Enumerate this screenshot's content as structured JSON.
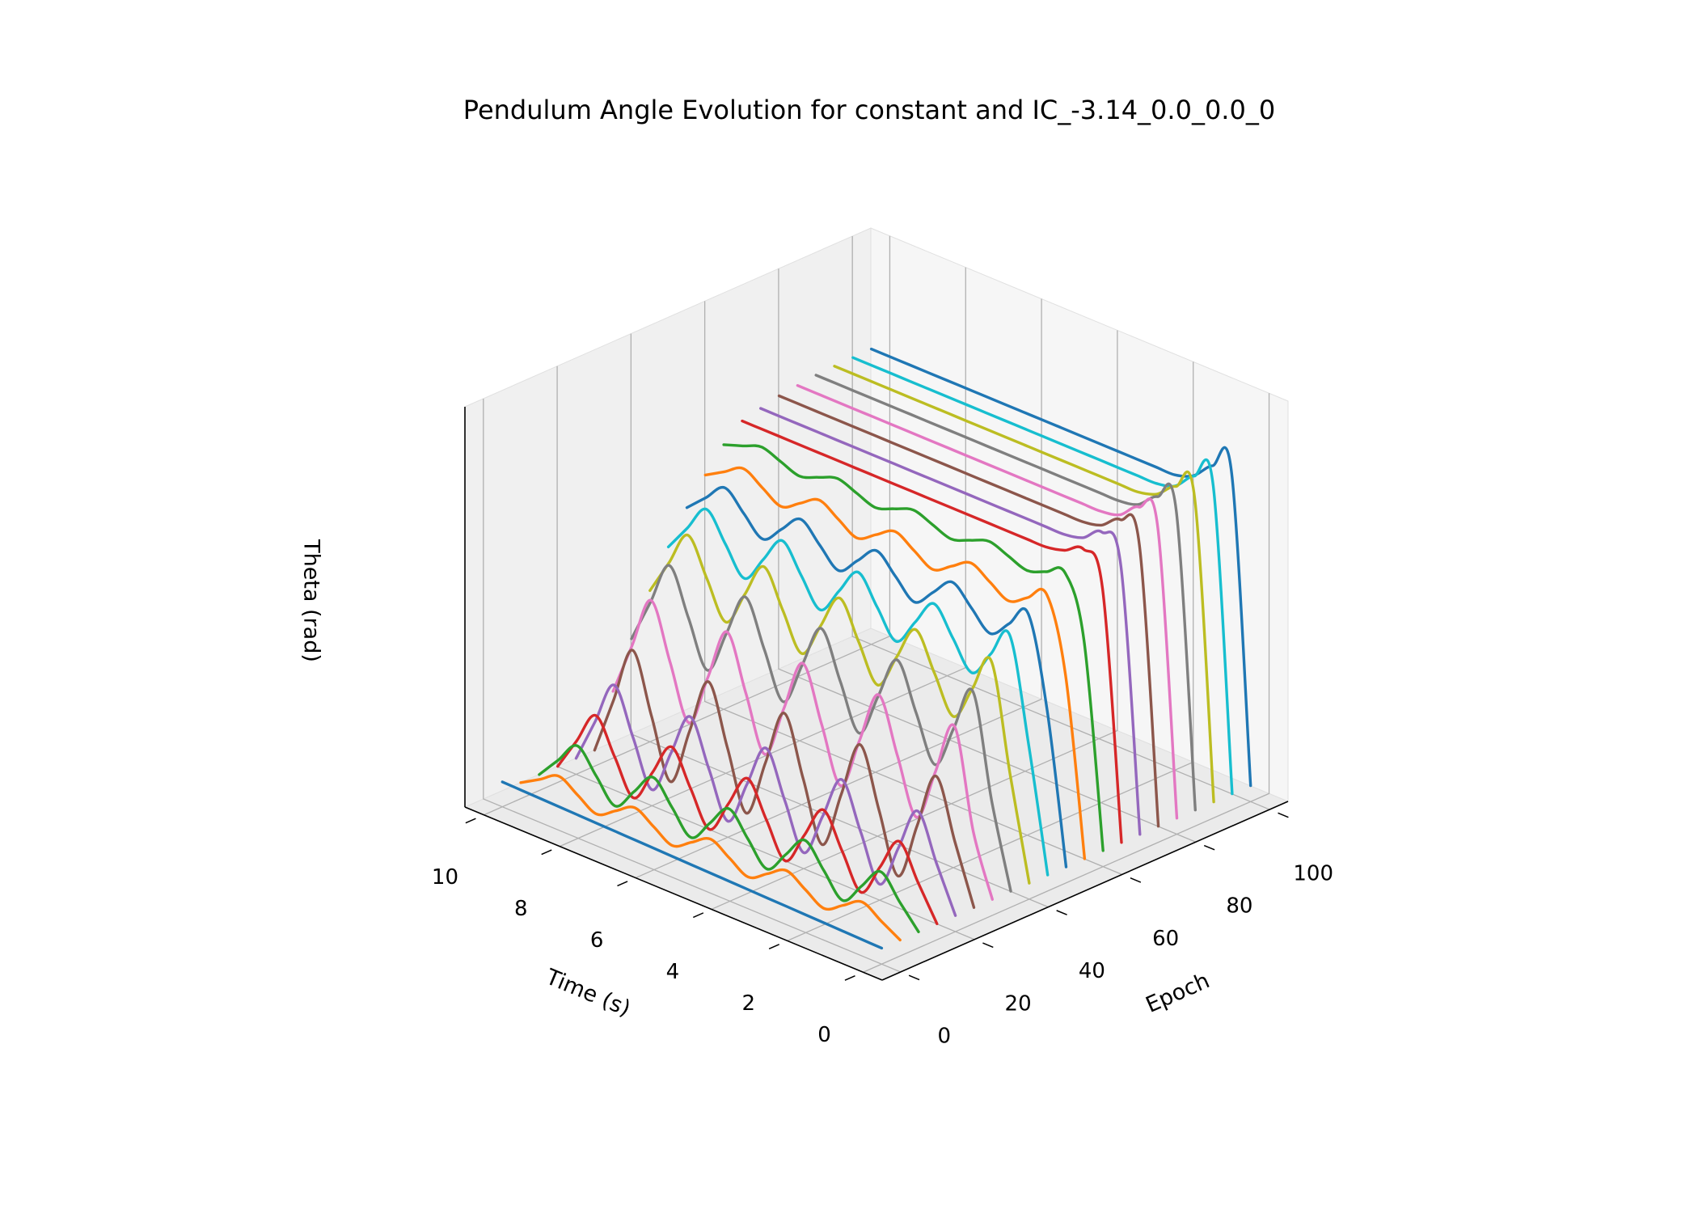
{
  "chart_data": {
    "type": "line3d",
    "title": "Pendulum Angle Evolution for constant and IC_-3.14_0.0_0.0_0",
    "x_label": "Time (s)",
    "y_label": "Epoch",
    "z_label": "Theta (rad)",
    "xlim": [
      -0.5,
      10.5
    ],
    "xticks": [
      0,
      2,
      4,
      6,
      8,
      10
    ],
    "ylim": [
      -5,
      105
    ],
    "yticks": [
      0,
      20,
      40,
      60,
      80,
      100
    ],
    "zlim": [
      -3.5,
      5.5
    ],
    "grid": true,
    "x": [
      0,
      0.5,
      1,
      1.5,
      2,
      2.5,
      3,
      3.5,
      4,
      4.5,
      5,
      5.5,
      6,
      6.5,
      7,
      7.5,
      8,
      8.5,
      9,
      9.5,
      10
    ],
    "series": [
      {
        "epoch": 0,
        "color": "#1f77b4",
        "values": [
          -3.14,
          -3.13,
          -3.12,
          -3.11,
          -3.1,
          -3.09,
          -3.08,
          -3.07,
          -3.06,
          -3.05,
          -3.04,
          -3.03,
          -3.02,
          -3.01,
          -3.0,
          -2.99,
          -2.98,
          -2.97,
          -2.96,
          -2.95,
          -2.94
        ]
      },
      {
        "epoch": 5,
        "color": "#ff7f0e",
        "values": [
          -3.14,
          -2.89,
          -2.64,
          -2.89,
          -3.14,
          -2.89,
          -2.64,
          -2.89,
          -3.14,
          -2.89,
          -2.64,
          -2.89,
          -3.14,
          -2.89,
          -2.64,
          -2.89,
          -3.14,
          -2.89,
          -2.64,
          -2.89,
          -3.14
        ]
      },
      {
        "epoch": 10,
        "color": "#2ca02c",
        "values": [
          -3.14,
          -2.64,
          -2.14,
          -2.64,
          -3.14,
          -2.64,
          -2.14,
          -2.64,
          -3.14,
          -2.64,
          -2.14,
          -2.64,
          -3.14,
          -2.64,
          -2.14,
          -2.64,
          -3.14,
          -2.64,
          -2.14,
          -2.64,
          -3.14
        ]
      },
      {
        "epoch": 15,
        "color": "#d62728",
        "values": [
          -3.14,
          -2.39,
          -1.64,
          -2.39,
          -3.14,
          -2.39,
          -1.64,
          -2.39,
          -3.14,
          -2.39,
          -1.64,
          -2.39,
          -3.14,
          -2.39,
          -1.64,
          -2.39,
          -3.14,
          -2.39,
          -1.64,
          -2.39,
          -3.14
        ]
      },
      {
        "epoch": 20,
        "color": "#9467bd",
        "values": [
          -3.14,
          -2.14,
          -1.14,
          -2.14,
          -3.14,
          -2.14,
          -1.14,
          -2.14,
          -3.14,
          -2.14,
          -1.14,
          -2.14,
          -3.14,
          -2.14,
          -1.14,
          -2.14,
          -3.14,
          -2.14,
          -1.14,
          -2.14,
          -3.14
        ]
      },
      {
        "epoch": 25,
        "color": "#8c564b",
        "values": [
          -3.14,
          -1.84,
          -0.54,
          -1.84,
          -3.14,
          -1.84,
          -0.54,
          -1.84,
          -3.14,
          -1.84,
          -0.54,
          -1.84,
          -3.14,
          -1.84,
          -0.54,
          -1.84,
          -3.14,
          -1.84,
          -0.54,
          -1.84,
          -3.14
        ]
      },
      {
        "epoch": 30,
        "color": "#e377c2",
        "values": [
          -3.14,
          -1.8,
          0.4,
          -0.8,
          -2.0,
          -0.8,
          0.4,
          -0.8,
          -2.0,
          -0.8,
          0.4,
          -0.8,
          -2.0,
          -0.8,
          0.4,
          -0.8,
          -2.0,
          -0.8,
          0.4,
          -0.8,
          -2.0
        ]
      },
      {
        "epoch": 35,
        "color": "#7f7f7f",
        "values": [
          -3.14,
          -1.3,
          1.0,
          0.0,
          -1.0,
          0.0,
          1.0,
          0.0,
          -1.0,
          0.0,
          1.0,
          0.0,
          -1.0,
          0.0,
          1.0,
          0.0,
          -1.0,
          0.0,
          1.0,
          0.0,
          -1.0
        ]
      },
      {
        "epoch": 40,
        "color": "#bcbd22",
        "values": [
          -3.14,
          -0.9,
          1.5,
          0.7,
          -0.1,
          0.7,
          1.5,
          0.7,
          -0.1,
          0.7,
          1.5,
          0.7,
          -0.1,
          0.7,
          1.5,
          0.7,
          -0.1,
          0.7,
          1.5,
          0.7,
          -0.1
        ]
      },
      {
        "epoch": 45,
        "color": "#17becf",
        "values": [
          -3.14,
          -0.4,
          1.9,
          1.3,
          0.7,
          1.3,
          1.9,
          1.3,
          0.7,
          1.3,
          1.9,
          1.3,
          0.7,
          1.3,
          1.9,
          1.3,
          0.7,
          1.3,
          1.9,
          1.3,
          0.7
        ]
      },
      {
        "epoch": 50,
        "color": "#1f77b4",
        "values": [
          -3.14,
          0.2,
          2.2,
          1.8,
          1.4,
          1.8,
          2.2,
          1.8,
          1.4,
          1.8,
          2.2,
          1.8,
          1.4,
          1.8,
          2.2,
          1.8,
          1.4,
          1.8,
          2.2,
          1.8,
          1.4
        ]
      },
      {
        "epoch": 55,
        "color": "#ff7f0e",
        "values": [
          -3.14,
          0.8,
          2.45,
          2.2,
          1.95,
          2.2,
          2.45,
          2.2,
          1.95,
          2.2,
          2.45,
          2.2,
          1.95,
          2.2,
          2.45,
          2.2,
          1.95,
          2.2,
          2.45,
          2.2,
          1.95
        ]
      },
      {
        "epoch": 60,
        "color": "#2ca02c",
        "values": [
          -3.14,
          1.4,
          2.75,
          2.6,
          2.45,
          2.6,
          2.75,
          2.6,
          2.45,
          2.6,
          2.75,
          2.6,
          2.45,
          2.6,
          2.75,
          2.6,
          2.45,
          2.6,
          2.75,
          2.6,
          2.45
        ]
      },
      {
        "epoch": 65,
        "color": "#d62728",
        "values": [
          -3.14,
          2.4,
          3.1,
          2.9,
          2.8,
          2.8,
          2.8,
          2.8,
          2.8,
          2.8,
          2.8,
          2.8,
          2.8,
          2.8,
          2.8,
          2.8,
          2.8,
          2.8,
          2.8,
          2.8,
          2.8
        ]
      },
      {
        "epoch": 70,
        "color": "#9467bd",
        "values": [
          -3.14,
          2.7,
          3.3,
          3.0,
          2.9,
          2.9,
          2.9,
          2.9,
          2.9,
          2.9,
          2.9,
          2.9,
          2.9,
          2.9,
          2.9,
          2.9,
          2.9,
          2.9,
          2.9,
          2.9,
          2.9
        ]
      },
      {
        "epoch": 75,
        "color": "#8c564b",
        "values": [
          -3.14,
          3.0,
          3.4,
          3.1,
          3.0,
          3.0,
          3.0,
          3.0,
          3.0,
          3.0,
          3.0,
          3.0,
          3.0,
          3.0,
          3.0,
          3.0,
          3.0,
          3.0,
          3.0,
          3.0,
          3.0
        ]
      },
      {
        "epoch": 80,
        "color": "#e377c2",
        "values": [
          -3.14,
          3.2,
          3.5,
          3.15,
          3.05,
          3.05,
          3.05,
          3.05,
          3.05,
          3.05,
          3.05,
          3.05,
          3.05,
          3.05,
          3.05,
          3.05,
          3.05,
          3.05,
          3.05,
          3.05,
          3.05
        ]
      },
      {
        "epoch": 85,
        "color": "#7f7f7f",
        "values": [
          -3.14,
          3.4,
          3.55,
          3.2,
          3.1,
          3.1,
          3.1,
          3.1,
          3.1,
          3.1,
          3.1,
          3.1,
          3.1,
          3.1,
          3.1,
          3.1,
          3.1,
          3.1,
          3.1,
          3.1,
          3.1
        ]
      },
      {
        "epoch": 90,
        "color": "#bcbd22",
        "values": [
          -3.14,
          3.5,
          3.6,
          3.25,
          3.12,
          3.12,
          3.12,
          3.12,
          3.12,
          3.12,
          3.12,
          3.12,
          3.12,
          3.12,
          3.12,
          3.12,
          3.12,
          3.12,
          3.12,
          3.12,
          3.12
        ]
      },
      {
        "epoch": 95,
        "color": "#17becf",
        "values": [
          -3.14,
          3.6,
          3.65,
          3.25,
          3.13,
          3.13,
          3.13,
          3.13,
          3.13,
          3.13,
          3.13,
          3.13,
          3.13,
          3.13,
          3.13,
          3.13,
          3.13,
          3.13,
          3.13,
          3.13,
          3.13
        ]
      },
      {
        "epoch": 100,
        "color": "#1f77b4",
        "values": [
          -3.14,
          3.7,
          3.7,
          3.3,
          3.14,
          3.14,
          3.14,
          3.14,
          3.14,
          3.14,
          3.14,
          3.14,
          3.14,
          3.14,
          3.14,
          3.14,
          3.14,
          3.14,
          3.14,
          3.14,
          3.14
        ]
      }
    ]
  }
}
